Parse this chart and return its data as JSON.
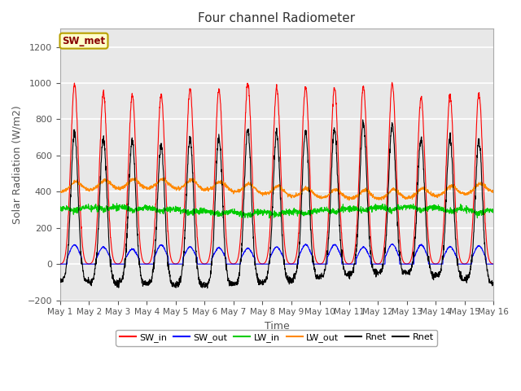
{
  "title": "Four channel Radiometer",
  "xlabel": "Time",
  "ylabel": "Solar Radiation (W/m2)",
  "ylim": [
    -200,
    1300
  ],
  "yticks": [
    -200,
    0,
    200,
    400,
    600,
    800,
    1000,
    1200
  ],
  "num_days": 15,
  "annotation_text": "SW_met",
  "annotation_bg": "#ffffcc",
  "annotation_border": "#b8a000",
  "annotation_text_color": "#880000",
  "colors": {
    "SW_in": "#ff0000",
    "SW_out": "#0000ff",
    "LW_in": "#00cc00",
    "LW_out": "#ff8800",
    "Rnet": "#000000"
  },
  "plot_bg": "#e8e8e8",
  "fig_bg": "#ffffff",
  "legend_entries": [
    "SW_in",
    "SW_out",
    "LW_in",
    "LW_out",
    "Rnet",
    "Rnet"
  ],
  "legend_colors": [
    "#ff0000",
    "#0000ff",
    "#00cc00",
    "#ff8800",
    "#000000",
    "#000000"
  ],
  "figsize": [
    6.4,
    4.8
  ],
  "dpi": 100
}
